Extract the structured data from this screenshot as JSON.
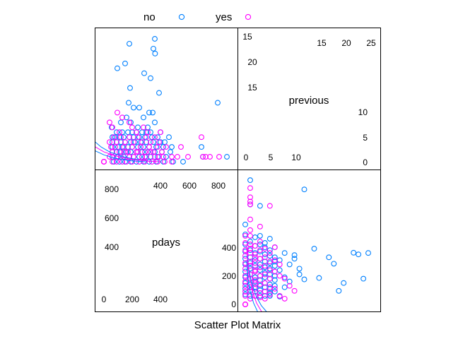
{
  "chart_data": {
    "type": "scatter",
    "subtype": "scatter-plot-matrix",
    "xlabel": "Scatter Plot Matrix",
    "variables": [
      {
        "name": "pdays",
        "range": [
          0,
          900
        ],
        "ticks_major": [
          "0",
          "200",
          "400"
        ],
        "ticks_minor": [
          "400",
          "600",
          "800"
        ]
      },
      {
        "name": "previous",
        "range": [
          0,
          26
        ],
        "ticks_major": [
          "0",
          "5",
          "10"
        ],
        "ticks_minor": [
          "15",
          "20",
          "25"
        ]
      }
    ],
    "legend": {
      "placement": "top",
      "entries": [
        {
          "label": "no",
          "color": "#0080ff"
        },
        {
          "label": "yes",
          "color": "#ff00ff"
        }
      ]
    },
    "groups": [
      {
        "label": "no",
        "color": "#0080ff",
        "points": [
          [
            360,
            25
          ],
          [
            350,
            23
          ],
          [
            362,
            22
          ],
          [
            180,
            24
          ],
          [
            150,
            20
          ],
          [
            95,
            19
          ],
          [
            285,
            18
          ],
          [
            330,
            17
          ],
          [
            185,
            15
          ],
          [
            390,
            14
          ],
          [
            805,
            12
          ],
          [
            175,
            12
          ],
          [
            210,
            11
          ],
          [
            250,
            11
          ],
          [
            320,
            10
          ],
          [
            345,
            10
          ],
          [
            280,
            9
          ],
          [
            160,
            9
          ],
          [
            120,
            8
          ],
          [
            190,
            8
          ],
          [
            240,
            7
          ],
          [
            310,
            7
          ],
          [
            360,
            8
          ],
          [
            55,
            7
          ],
          [
            90,
            6
          ],
          [
            130,
            6
          ],
          [
            170,
            6
          ],
          [
            200,
            6
          ],
          [
            230,
            6
          ],
          [
            270,
            6
          ],
          [
            300,
            6
          ],
          [
            330,
            6
          ],
          [
            400,
            6
          ],
          [
            460,
            5
          ],
          [
            60,
            5
          ],
          [
            80,
            5
          ],
          [
            110,
            5
          ],
          [
            140,
            5
          ],
          [
            180,
            5
          ],
          [
            210,
            5
          ],
          [
            250,
            5
          ],
          [
            290,
            5
          ],
          [
            340,
            5
          ],
          [
            380,
            5
          ],
          [
            430,
            4
          ],
          [
            60,
            4
          ],
          [
            90,
            4
          ],
          [
            120,
            4
          ],
          [
            150,
            4
          ],
          [
            190,
            4
          ],
          [
            220,
            4
          ],
          [
            260,
            4
          ],
          [
            300,
            4
          ],
          [
            350,
            4
          ],
          [
            400,
            4
          ],
          [
            480,
            3
          ],
          [
            60,
            3
          ],
          [
            100,
            3
          ],
          [
            130,
            3
          ],
          [
            170,
            3
          ],
          [
            200,
            3
          ],
          [
            240,
            3
          ],
          [
            280,
            3
          ],
          [
            320,
            3
          ],
          [
            370,
            3
          ],
          [
            420,
            3
          ],
          [
            690,
            3
          ],
          [
            60,
            2
          ],
          [
            90,
            2
          ],
          [
            120,
            2
          ],
          [
            160,
            2
          ],
          [
            190,
            2
          ],
          [
            230,
            2
          ],
          [
            270,
            2
          ],
          [
            310,
            2
          ],
          [
            360,
            2
          ],
          [
            410,
            2
          ],
          [
            470,
            2
          ],
          [
            60,
            1
          ],
          [
            100,
            1
          ],
          [
            140,
            1
          ],
          [
            180,
            1
          ],
          [
            210,
            1
          ],
          [
            250,
            1
          ],
          [
            290,
            1
          ],
          [
            330,
            1
          ],
          [
            380,
            1
          ],
          [
            440,
            1
          ],
          [
            700,
            1
          ],
          [
            870,
            1
          ],
          [
            70,
            0
          ],
          [
            110,
            0
          ],
          [
            150,
            0
          ],
          [
            190,
            0
          ],
          [
            230,
            0
          ],
          [
            280,
            0
          ],
          [
            320,
            0
          ],
          [
            370,
            0
          ],
          [
            420,
            0
          ],
          [
            490,
            0
          ],
          [
            560,
            0
          ]
        ]
      },
      {
        "label": "yes",
        "color": "#ff00ff",
        "points": [
          [
            0,
            0
          ],
          [
            0,
            0
          ],
          [
            0,
            0
          ],
          [
            0,
            0
          ],
          [
            95,
            10
          ],
          [
            130,
            9
          ],
          [
            40,
            8
          ],
          [
            60,
            7
          ],
          [
            200,
            7
          ],
          [
            180,
            8
          ],
          [
            690,
            5
          ],
          [
            400,
            6
          ],
          [
            230,
            6
          ],
          [
            110,
            6
          ],
          [
            310,
            6
          ],
          [
            280,
            7
          ],
          [
            40,
            4
          ],
          [
            70,
            5
          ],
          [
            90,
            4
          ],
          [
            120,
            5
          ],
          [
            150,
            4
          ],
          [
            180,
            5
          ],
          [
            210,
            4
          ],
          [
            240,
            5
          ],
          [
            270,
            4
          ],
          [
            300,
            5
          ],
          [
            330,
            4
          ],
          [
            360,
            5
          ],
          [
            390,
            4
          ],
          [
            50,
            3
          ],
          [
            80,
            3
          ],
          [
            110,
            2
          ],
          [
            140,
            3
          ],
          [
            170,
            2
          ],
          [
            200,
            3
          ],
          [
            230,
            2
          ],
          [
            260,
            3
          ],
          [
            290,
            2
          ],
          [
            320,
            3
          ],
          [
            350,
            2
          ],
          [
            380,
            3
          ],
          [
            410,
            2
          ],
          [
            440,
            3
          ],
          [
            40,
            1
          ],
          [
            60,
            2
          ],
          [
            90,
            1
          ],
          [
            120,
            1
          ],
          [
            150,
            2
          ],
          [
            180,
            1
          ],
          [
            210,
            1
          ],
          [
            240,
            2
          ],
          [
            270,
            1
          ],
          [
            300,
            1
          ],
          [
            330,
            2
          ],
          [
            360,
            1
          ],
          [
            390,
            1
          ],
          [
            420,
            1
          ],
          [
            480,
            1
          ],
          [
            60,
            0
          ],
          [
            90,
            0
          ],
          [
            130,
            0
          ],
          [
            160,
            0
          ],
          [
            200,
            0
          ],
          [
            250,
            0
          ],
          [
            290,
            0
          ],
          [
            340,
            0
          ],
          [
            380,
            0
          ],
          [
            430,
            0
          ],
          [
            480,
            0
          ],
          [
            520,
            1
          ],
          [
            545,
            3
          ],
          [
            595,
            1
          ],
          [
            700,
            1
          ],
          [
            720,
            1
          ],
          [
            750,
            1
          ],
          [
            815,
            1
          ]
        ]
      }
    ],
    "smooth_curves": [
      {
        "group": "no",
        "color": "#0080ff",
        "points": [
          [
            0,
            4
          ],
          [
            40,
            3
          ],
          [
            100,
            2
          ],
          [
            200,
            1
          ],
          [
            300,
            0.4
          ],
          [
            400,
            0.05
          ]
        ]
      },
      {
        "group": "yes",
        "color": "#ff00ff",
        "points": [
          [
            0,
            3
          ],
          [
            60,
            2
          ],
          [
            140,
            1.2
          ],
          [
            250,
            0.5
          ],
          [
            380,
            0.1
          ],
          [
            460,
            0
          ]
        ]
      },
      {
        "group": "no",
        "color": "#0080ff",
        "points": [
          [
            0,
            2.2
          ],
          [
            60,
            1.4
          ],
          [
            140,
            0.7
          ],
          [
            250,
            0.2
          ],
          [
            350,
            0
          ]
        ]
      }
    ]
  }
}
